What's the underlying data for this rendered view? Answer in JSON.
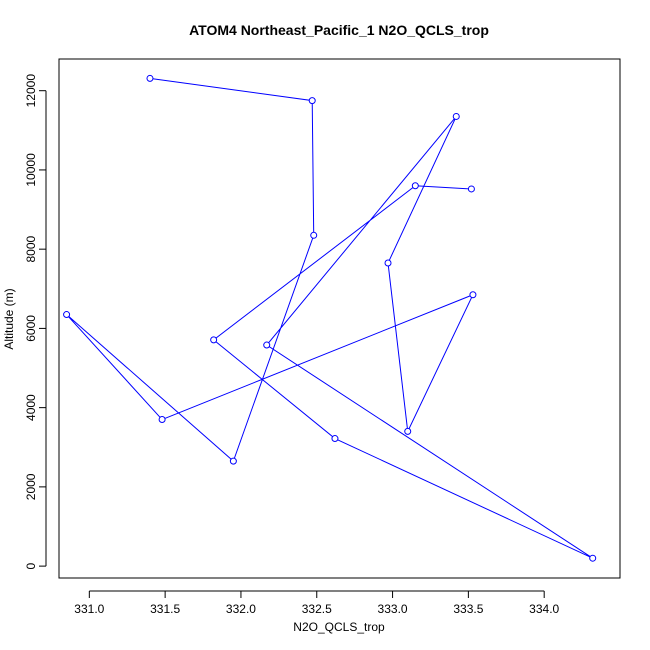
{
  "chart_data": {
    "type": "line",
    "title": "ATOM4 Northeast_Pacific_1 N2O_QCLS_trop",
    "xlabel": "N2O_QCLS_trop",
    "ylabel": "Altitude (m)",
    "xlim": [
      330.8,
      334.5
    ],
    "ylim": [
      -300,
      12800
    ],
    "xticks": [
      331.0,
      331.5,
      332.0,
      332.5,
      333.0,
      333.5,
      334.0
    ],
    "xtick_labels": [
      "331.0",
      "331.5",
      "332.0",
      "332.5",
      "333.0",
      "333.5",
      "334.0"
    ],
    "yticks": [
      0,
      2000,
      4000,
      6000,
      8000,
      10000,
      12000
    ],
    "ytick_labels": [
      "0",
      "2000",
      "4000",
      "6000",
      "8000",
      "10000",
      "12000"
    ],
    "line_color": "#0000ff",
    "marker": "open-circle",
    "points": [
      {
        "x": 331.4,
        "y": 12310
      },
      {
        "x": 332.47,
        "y": 11750
      },
      {
        "x": 332.48,
        "y": 8350
      },
      {
        "x": 331.95,
        "y": 2650
      },
      {
        "x": 330.85,
        "y": 6350
      },
      {
        "x": 331.48,
        "y": 3700
      },
      {
        "x": 333.53,
        "y": 6850
      },
      {
        "x": 333.1,
        "y": 3400
      },
      {
        "x": 332.97,
        "y": 7650
      },
      {
        "x": 333.42,
        "y": 11350
      },
      {
        "x": 332.17,
        "y": 5580
      },
      {
        "x": 334.32,
        "y": 200
      },
      {
        "x": 332.62,
        "y": 3220
      },
      {
        "x": 331.82,
        "y": 5710
      },
      {
        "x": 333.15,
        "y": 9600
      },
      {
        "x": 333.52,
        "y": 9520
      }
    ]
  }
}
